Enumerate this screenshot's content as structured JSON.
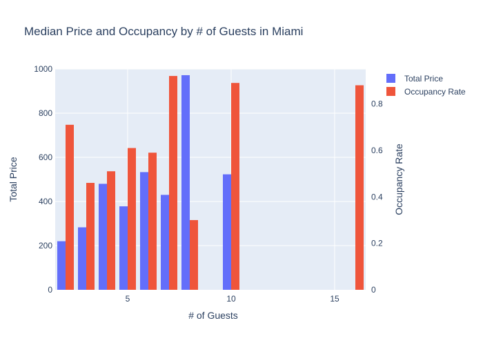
{
  "chart_data": {
    "type": "bar",
    "title": "Median Price and Occupancy by # of Guests in Miami",
    "xlabel": "# of Guests",
    "ylabel": "Total Price",
    "y2label": "Occupancy Rate",
    "xlim": [
      1.5,
      16.5
    ],
    "ylim": [
      0,
      1000
    ],
    "y2lim": [
      0,
      0.95
    ],
    "x_ticks": [
      5,
      10,
      15
    ],
    "y_ticks": [
      0,
      200,
      400,
      600,
      800,
      1000
    ],
    "y2_ticks": [
      0,
      0.2,
      0.4,
      0.6,
      0.8
    ],
    "gridlines": true,
    "legend_position": "top-right",
    "series": [
      {
        "name": "Total Price",
        "axis": "left",
        "color": "#636efa",
        "x": [
          2,
          3,
          4,
          5,
          6,
          7,
          8,
          10
        ],
        "values": [
          220,
          283,
          480,
          378,
          533,
          430,
          972,
          523
        ]
      },
      {
        "name": "Occupancy Rate",
        "axis": "right",
        "color": "#ef553b",
        "x": [
          2,
          3,
          4,
          5,
          6,
          7,
          8,
          10,
          16
        ],
        "values": [
          0.71,
          0.46,
          0.51,
          0.61,
          0.59,
          0.92,
          0.3,
          0.89,
          0.88
        ]
      }
    ]
  }
}
